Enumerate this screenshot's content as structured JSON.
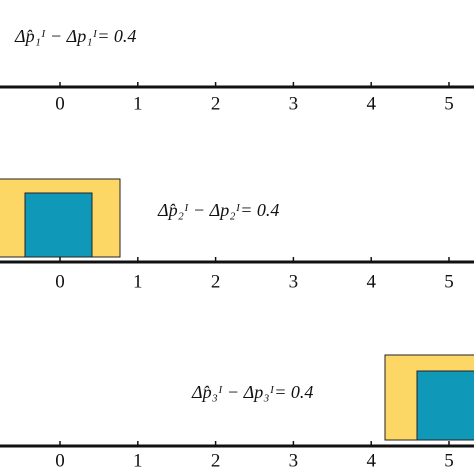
{
  "panels": [
    {
      "equation": "Δp̂₁ᴵ − Δp₁ᴵ= 0.4",
      "ticks": [
        0,
        1,
        2,
        3,
        4,
        5
      ]
    },
    {
      "equation": "Δp̂₂ᴵ − Δp₂ᴵ= 0.4",
      "ticks": [
        0,
        1,
        2,
        3,
        4,
        5
      ]
    },
    {
      "equation": "Δp̂₃ᴵ − Δp₃ᴵ= 0.4",
      "ticks": [
        0,
        1,
        2,
        3,
        4,
        5
      ]
    }
  ]
}
